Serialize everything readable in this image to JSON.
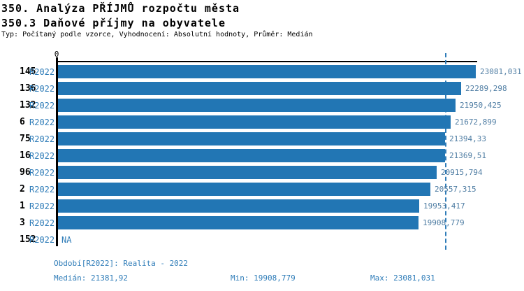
{
  "header": {
    "title": "350. Analýza PŘÍJMŮ rozpočtu města",
    "subtitle": "350.3 Daňové příjmy na obyvatele",
    "meta": "Typ: Počítaný podle vzorce, Vyhodnocení: Absolutní hodnoty, Průměr: Medián"
  },
  "colors": {
    "bar": "#2276b4",
    "period_text": "#2e7cb8",
    "value_text": "#4f7da3",
    "median_line": "#2e7cb8",
    "axis": "#000000"
  },
  "axis": {
    "zero_label": "0"
  },
  "chart_data": {
    "type": "bar",
    "orientation": "horizontal",
    "xlim": [
      0,
      23081.031
    ],
    "median_value": 21381.92,
    "grid": "median-dashed-line",
    "rows": [
      {
        "rank": "145",
        "period": "R2022",
        "value": 23081.031,
        "value_label": "23081,031"
      },
      {
        "rank": "136",
        "period": "R2022",
        "value": 22289.298,
        "value_label": "22289,298"
      },
      {
        "rank": "132",
        "period": "R2022",
        "value": 21950.425,
        "value_label": "21950,425"
      },
      {
        "rank": "6",
        "period": "R2022",
        "value": 21672.899,
        "value_label": "21672,899"
      },
      {
        "rank": "75",
        "period": "R2022",
        "value": 21394.33,
        "value_label": "21394,33"
      },
      {
        "rank": "16",
        "period": "R2022",
        "value": 21369.51,
        "value_label": "21369,51"
      },
      {
        "rank": "96",
        "period": "R2022",
        "value": 20915.794,
        "value_label": "20915,794"
      },
      {
        "rank": "2",
        "period": "R2022",
        "value": 20557.315,
        "value_label": "20557,315"
      },
      {
        "rank": "1",
        "period": "R2022",
        "value": 19953.417,
        "value_label": "19953,417"
      },
      {
        "rank": "3",
        "period": "R2022",
        "value": 19908.779,
        "value_label": "19908,779"
      },
      {
        "rank": "152",
        "period": "R2022",
        "value": null,
        "value_label": "NA"
      }
    ]
  },
  "footer": {
    "period_line": "Období[R2022]: Realita - 2022",
    "median": "Medián: 21381,92",
    "min": "Min: 19908,779",
    "max": "Max: 23081,031"
  }
}
